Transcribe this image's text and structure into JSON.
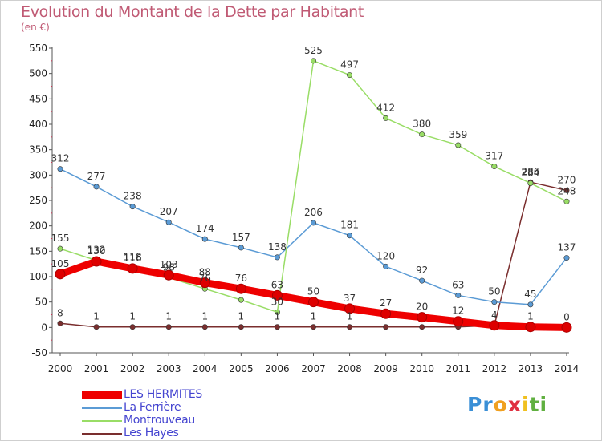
{
  "title": "Evolution du Montant de la Dette par Habitant",
  "subtitle": "(en €)",
  "logo": {
    "letters": [
      "P",
      "r",
      "o",
      "x",
      "i",
      "t",
      "i"
    ],
    "colors": [
      "#3a8fd6",
      "#3a8fd6",
      "#f0a020",
      "#e03040",
      "#f0c020",
      "#60b040",
      "#60b040"
    ]
  },
  "chart_data": {
    "type": "line",
    "title": "Evolution du Montant de la Dette par Habitant",
    "ylabel": "(en €)",
    "xlabel": "",
    "x": [
      "2000",
      "2001",
      "2002",
      "2003",
      "2004",
      "2005",
      "2006",
      "2007",
      "2008",
      "2009",
      "2010",
      "2011",
      "2012",
      "2013",
      "2014"
    ],
    "ylim": [
      -50,
      550
    ],
    "yticks": [
      -50,
      0,
      50,
      100,
      150,
      200,
      250,
      300,
      350,
      400,
      450,
      500,
      550
    ],
    "grid": false,
    "legend": "bottom-left",
    "series": [
      {
        "name": "LES HERMITES",
        "color": "#ee0000",
        "values": [
          105,
          130,
          116,
          103,
          88,
          76,
          63,
          50,
          37,
          27,
          20,
          12,
          4,
          1,
          0
        ],
        "labels": [
          "105",
          "130",
          "116",
          "103",
          "88",
          "76",
          "63",
          "50",
          "37",
          "27",
          "20",
          "12",
          "4",
          "1",
          "0"
        ]
      },
      {
        "name": "La Ferrière",
        "color": "#5b9bd5",
        "values": [
          312,
          277,
          238,
          207,
          174,
          157,
          138,
          206,
          181,
          120,
          92,
          63,
          50,
          45,
          137
        ],
        "labels": [
          "312",
          "277",
          "238",
          "207",
          "174",
          "157",
          "138",
          "206",
          "181",
          "120",
          "92",
          "63",
          "50",
          "45",
          "137"
        ]
      },
      {
        "name": "Montrouveau",
        "color": "#99dd66",
        "values": [
          155,
          132,
          118,
          98,
          76,
          54,
          30,
          525,
          497,
          412,
          380,
          359,
          317,
          284,
          248
        ],
        "labels": [
          "155",
          "132",
          "118",
          "98",
          "76",
          "",
          "30",
          "525",
          "497",
          "412",
          "380",
          "359",
          "317",
          "284",
          "248"
        ]
      },
      {
        "name": "Les Hayes",
        "color": "#7a2e2e",
        "values": [
          8,
          1,
          1,
          1,
          1,
          1,
          1,
          1,
          1,
          1,
          1,
          1,
          4,
          286,
          270
        ],
        "labels": [
          "8",
          "1",
          "1",
          "1",
          "1",
          "1",
          "1",
          "1",
          "1",
          "",
          "",
          "",
          "",
          "286",
          "270"
        ]
      }
    ],
    "draw_order": [
      3,
      1,
      2,
      0
    ]
  }
}
